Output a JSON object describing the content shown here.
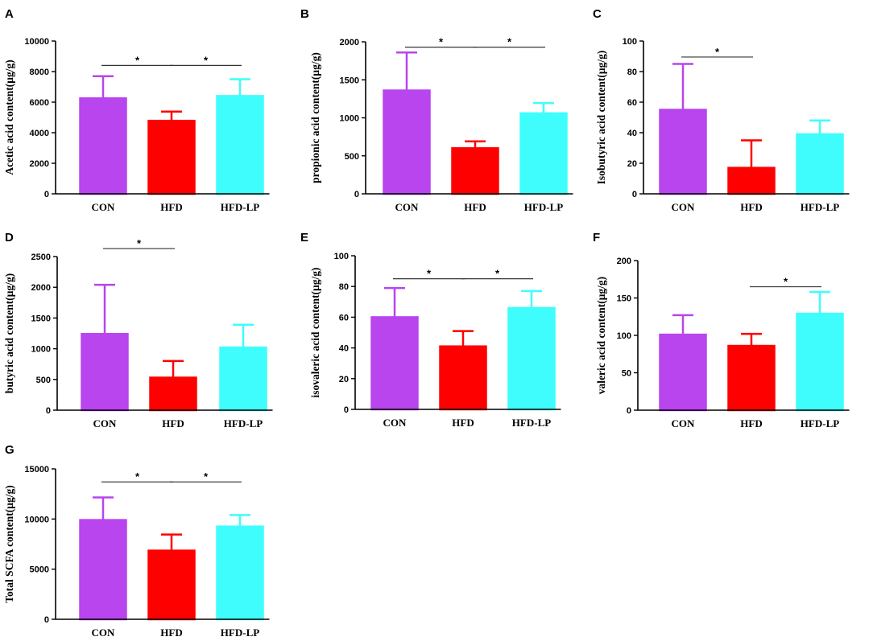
{
  "colors": {
    "CON": "#b845ee",
    "HFD": "#ff0000",
    "HFD-LP": "#3ffdfd",
    "axis": "#000000",
    "sig_line": "#333333"
  },
  "chart_data": [
    {
      "panel": "A",
      "type": "bar",
      "ylabel": "Acetic acid content(μg/g)",
      "categories": [
        "CON",
        "HFD",
        "HFD-LP"
      ],
      "values": [
        6250,
        4780,
        6400
      ],
      "errors": [
        1450,
        600,
        1100
      ],
      "ylim": [
        0,
        10000
      ],
      "yticks": [
        0,
        2000,
        4000,
        6000,
        8000,
        10000
      ],
      "significance": [
        {
          "from": 0,
          "to": 1,
          "level": 8400,
          "label": "*"
        },
        {
          "from": 1,
          "to": 2,
          "level": 8400,
          "label": "*"
        }
      ]
    },
    {
      "panel": "B",
      "type": "bar",
      "ylabel": "propionic acid content(μg/g)",
      "categories": [
        "CON",
        "HFD",
        "HFD-LP"
      ],
      "values": [
        1360,
        600,
        1060
      ],
      "errors": [
        500,
        90,
        135
      ],
      "ylim": [
        0,
        2000
      ],
      "yticks": [
        0,
        500,
        1000,
        1500,
        2000
      ],
      "significance": [
        {
          "from": 0,
          "to": 1,
          "level": 1930,
          "label": "*"
        },
        {
          "from": 1,
          "to": 2,
          "level": 1930,
          "label": "*"
        }
      ]
    },
    {
      "panel": "C",
      "type": "bar",
      "ylabel": "Isobutyric acid content(μg/g)",
      "categories": [
        "CON",
        "HFD",
        "HFD-LP"
      ],
      "values": [
        55,
        17,
        39
      ],
      "errors": [
        30,
        18,
        9
      ],
      "ylim": [
        0,
        100
      ],
      "yticks": [
        0,
        20,
        40,
        60,
        80,
        100
      ],
      "significance": [
        {
          "from": 0,
          "to": 1,
          "level": 89.5,
          "label": "*"
        }
      ]
    },
    {
      "panel": "D",
      "type": "bar",
      "ylabel": "butyric acid content(μg/g)",
      "categories": [
        "CON",
        "HFD",
        "HFD-LP"
      ],
      "values": [
        1240,
        530,
        1020
      ],
      "errors": [
        800,
        270,
        370
      ],
      "ylim": [
        0,
        2500
      ],
      "yticks": [
        0,
        500,
        1000,
        1500,
        2000,
        2500
      ],
      "significance": [
        {
          "from": 0,
          "to": 1,
          "level": 2630,
          "label": "*"
        }
      ]
    },
    {
      "panel": "E",
      "type": "bar",
      "ylabel": "isovaleric acid content(μg/g)",
      "categories": [
        "CON",
        "HFD",
        "HFD-LP"
      ],
      "values": [
        60,
        41,
        66
      ],
      "errors": [
        19,
        10,
        11
      ],
      "ylim": [
        0,
        100
      ],
      "yticks": [
        0,
        20,
        40,
        60,
        80,
        100
      ],
      "significance": [
        {
          "from": 0,
          "to": 1,
          "level": 85,
          "label": "*"
        },
        {
          "from": 1,
          "to": 2,
          "level": 85,
          "label": "*"
        }
      ]
    },
    {
      "panel": "F",
      "type": "bar",
      "ylabel": "valeric acid content(μg/g)",
      "categories": [
        "CON",
        "HFD",
        "HFD-LP"
      ],
      "values": [
        101,
        86,
        129
      ],
      "errors": [
        26,
        16,
        29
      ],
      "ylim": [
        0,
        200
      ],
      "yticks": [
        0,
        50,
        100,
        150,
        200
      ],
      "significance": [
        {
          "from": 1,
          "to": 2,
          "level": 165,
          "label": "*"
        }
      ]
    },
    {
      "panel": "G",
      "type": "bar",
      "ylabel": "Total SCFA content(μg/g)",
      "categories": [
        "CON",
        "HFD",
        "HFD-LP"
      ],
      "values": [
        9900,
        6850,
        9250
      ],
      "errors": [
        2250,
        1600,
        1150
      ],
      "ylim": [
        0,
        15000
      ],
      "yticks": [
        0,
        5000,
        10000,
        15000
      ],
      "significance": [
        {
          "from": 0,
          "to": 1,
          "level": 13700,
          "label": "*"
        },
        {
          "from": 1,
          "to": 2,
          "level": 13700,
          "label": "*"
        }
      ]
    }
  ]
}
